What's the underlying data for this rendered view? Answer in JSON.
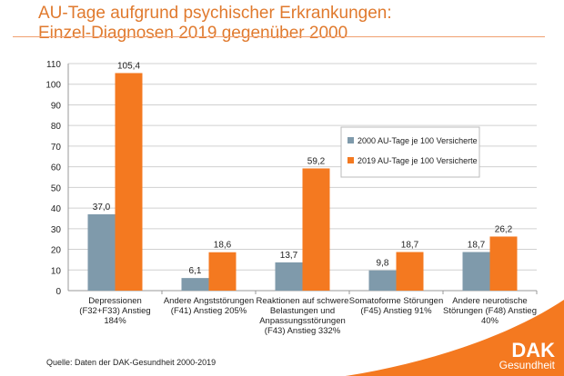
{
  "title_line1": "AU-Tage aufgrund psychischer Erkrankungen:",
  "title_line2": "Einzel-Diagnosen 2019 gegenüber 2000",
  "source": "Quelle: Daten der DAK-Gesundheit 2000-2019",
  "logo": {
    "line1": "DAK",
    "line2": "Gesundheit"
  },
  "chart_data": {
    "type": "bar",
    "categories": [
      [
        "Depressionen",
        "(F32+F33) Anstieg",
        "184%"
      ],
      [
        "Andere Angststörungen",
        "(F41) Anstieg 205%"
      ],
      [
        "Reaktionen auf schwere",
        "Belastungen und",
        "Anpassungsstörungen",
        "(F43) Anstieg 332%"
      ],
      [
        "Somatoforme Störungen",
        "(F45) Anstieg 91%"
      ],
      [
        "Andere neurotische",
        "Störungen (F48) Anstieg",
        "40%"
      ]
    ],
    "series": [
      {
        "name": "2000 AU-Tage je 100 Versicherte",
        "values": [
          37.0,
          6.1,
          13.7,
          9.8,
          18.7
        ],
        "labels": [
          "37,0",
          "6,1",
          "13,7",
          "9,8",
          "18,7"
        ],
        "color": "#7f9aab"
      },
      {
        "name": "2019 AU-Tage je 100 Versicherte",
        "values": [
          105.4,
          18.6,
          59.2,
          18.7,
          26.2
        ],
        "labels": [
          "105,4",
          "18,6",
          "59,2",
          "18,7",
          "26,2"
        ],
        "color": "#f47920"
      }
    ],
    "ylim": [
      0,
      110
    ],
    "yticks": [
      0,
      10,
      20,
      30,
      40,
      50,
      60,
      70,
      80,
      90,
      100,
      110
    ],
    "grid": true,
    "legend": "right-middle"
  }
}
